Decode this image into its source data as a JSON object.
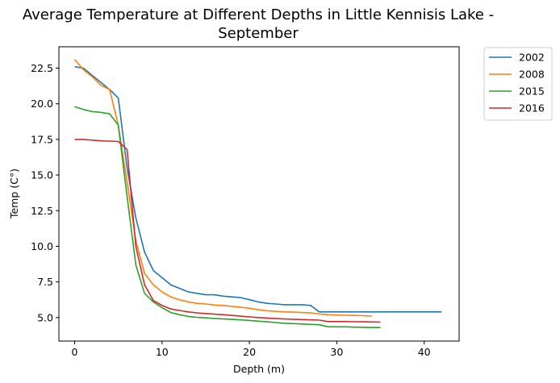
{
  "chart_data": {
    "type": "line",
    "title_line1": "Average Temperature at Different Depths in Little Kennisis Lake -",
    "title_line2": "September",
    "xlabel": "Depth (m)",
    "ylabel": "Temp (C°)",
    "xlim": [
      -1.8,
      44
    ],
    "ylim": [
      3.35,
      24.0
    ],
    "xticks": [
      0,
      10,
      20,
      30,
      40
    ],
    "yticks": [
      5.0,
      7.5,
      10.0,
      12.5,
      15.0,
      17.5,
      20.0,
      22.5
    ],
    "grid": false,
    "legend_position": "outside-top-right",
    "series": [
      {
        "name": "2002",
        "color": "#1f77b4",
        "x": [
          0,
          1,
          2,
          3,
          4,
          5,
          6,
          7,
          8,
          9,
          10,
          11,
          12,
          13,
          14,
          15,
          16,
          17,
          18,
          19,
          20,
          21,
          22,
          23,
          24,
          25,
          26,
          27,
          28,
          29,
          30,
          31,
          32,
          33,
          34,
          35,
          36,
          37,
          38,
          39,
          40,
          41,
          42
        ],
        "y": [
          22.6,
          22.5,
          22.0,
          21.5,
          21.0,
          20.4,
          15.5,
          12.0,
          9.6,
          8.3,
          7.8,
          7.3,
          7.05,
          6.8,
          6.7,
          6.6,
          6.6,
          6.5,
          6.45,
          6.4,
          6.25,
          6.1,
          6.0,
          5.95,
          5.9,
          5.9,
          5.9,
          5.85,
          5.4,
          5.4,
          5.4,
          5.4,
          5.4,
          5.4,
          5.4,
          5.4,
          5.4,
          5.4,
          5.4,
          5.4,
          5.4,
          5.4,
          5.4
        ]
      },
      {
        "name": "2008",
        "color": "#ff7f0e",
        "x": [
          0,
          1,
          2,
          3,
          4,
          5,
          6,
          7,
          8,
          9,
          10,
          11,
          12,
          13,
          14,
          15,
          16,
          17,
          18,
          19,
          20,
          21,
          22,
          23,
          24,
          25,
          26,
          27,
          28,
          29,
          30,
          31,
          32,
          33,
          34
        ],
        "y": [
          23.1,
          22.4,
          21.9,
          21.3,
          21.0,
          18.5,
          14.5,
          10.4,
          8.1,
          7.3,
          6.8,
          6.45,
          6.25,
          6.1,
          6.0,
          5.95,
          5.88,
          5.85,
          5.78,
          5.72,
          5.65,
          5.55,
          5.48,
          5.43,
          5.4,
          5.38,
          5.35,
          5.33,
          5.25,
          5.2,
          5.18,
          5.16,
          5.15,
          5.13,
          5.1
        ]
      },
      {
        "name": "2015",
        "color": "#2ca02c",
        "x": [
          0,
          1,
          2,
          3,
          4,
          5,
          6,
          7,
          8,
          9,
          10,
          11,
          12,
          13,
          14,
          15,
          16,
          17,
          18,
          19,
          20,
          21,
          22,
          23,
          24,
          25,
          26,
          27,
          28,
          29,
          30,
          31,
          32,
          33,
          34,
          35
        ],
        "y": [
          19.8,
          19.6,
          19.45,
          19.4,
          19.3,
          18.5,
          13.5,
          8.7,
          6.7,
          6.1,
          5.7,
          5.35,
          5.2,
          5.08,
          5.02,
          4.98,
          4.94,
          4.9,
          4.87,
          4.84,
          4.8,
          4.75,
          4.7,
          4.65,
          4.6,
          4.58,
          4.55,
          4.52,
          4.5,
          4.35,
          4.35,
          4.35,
          4.33,
          4.32,
          4.3,
          4.3
        ]
      },
      {
        "name": "2016",
        "color": "#d62728",
        "x": [
          0,
          1,
          2,
          3,
          4,
          5,
          6,
          7,
          8,
          9,
          10,
          11,
          12,
          13,
          14,
          15,
          16,
          17,
          18,
          19,
          20,
          21,
          22,
          23,
          24,
          25,
          26,
          27,
          28,
          29,
          30,
          31,
          32,
          33,
          34,
          35
        ],
        "y": [
          17.5,
          17.5,
          17.45,
          17.4,
          17.38,
          17.35,
          16.8,
          10.0,
          7.3,
          6.2,
          5.85,
          5.6,
          5.5,
          5.4,
          5.33,
          5.28,
          5.24,
          5.2,
          5.15,
          5.1,
          5.05,
          5.0,
          4.97,
          4.93,
          4.9,
          4.88,
          4.86,
          4.84,
          4.82,
          4.72,
          4.72,
          4.72,
          4.71,
          4.7,
          4.69,
          4.68
        ]
      }
    ]
  }
}
